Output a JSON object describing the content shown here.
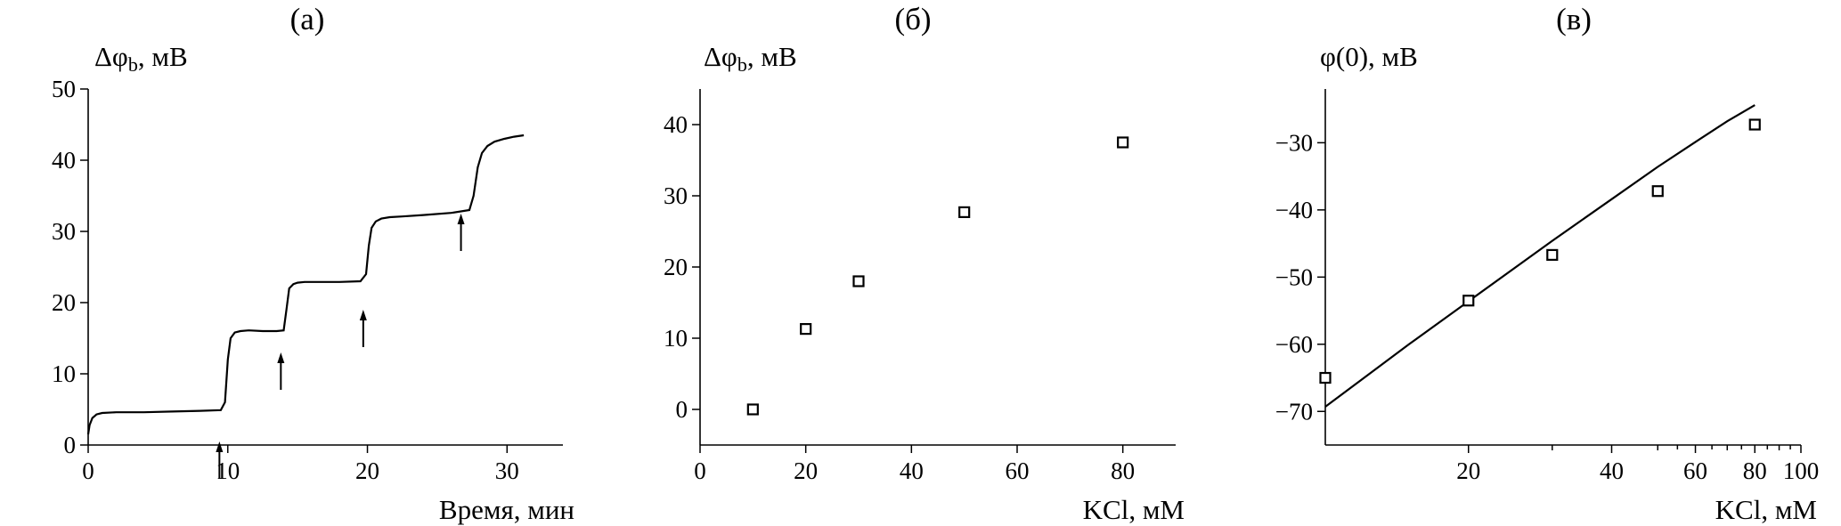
{
  "chart_data": [
    {
      "type": "line",
      "title": "(а)",
      "ylabel": "Δφ",
      "ylabel_sub": "b",
      "ylabel_unit": ", мВ",
      "xlabel": "Время, мин",
      "xlim": [
        0,
        34
      ],
      "ylim": [
        0,
        50
      ],
      "xticks": [
        0,
        10,
        20,
        30
      ],
      "yticks": [
        0,
        10,
        20,
        30,
        40,
        50
      ],
      "grid": false,
      "series": [
        {
          "x": [
            0,
            0.1,
            0.3,
            0.6,
            1,
            2,
            4,
            6,
            8,
            9.5,
            9.8,
            10.0,
            10.2,
            10.5,
            10.9,
            11.5,
            12.5,
            13.5,
            14.0,
            14.2,
            14.4,
            14.7,
            15.0,
            15.5,
            16.5,
            18,
            19.5,
            19.9,
            20.1,
            20.3,
            20.6,
            21.0,
            21.6,
            22.5,
            24,
            26,
            27.3,
            27.6,
            27.9,
            28.2,
            28.6,
            29.1,
            29.8,
            30.5,
            31.2
          ],
          "y": [
            1.5,
            2.8,
            3.8,
            4.3,
            4.5,
            4.6,
            4.6,
            4.7,
            4.8,
            4.9,
            6,
            12,
            15,
            15.8,
            16.0,
            16.1,
            16.0,
            16.0,
            16.1,
            19,
            22,
            22.6,
            22.8,
            22.9,
            22.9,
            22.9,
            23.0,
            24,
            28,
            30.5,
            31.4,
            31.8,
            32.0,
            32.1,
            32.3,
            32.6,
            33.0,
            35,
            39,
            41,
            42,
            42.6,
            43.0,
            43.3,
            43.5
          ]
        }
      ],
      "arrows_x": [
        9.4,
        13.8,
        19.7,
        26.7
      ]
    },
    {
      "type": "scatter",
      "title": "(б)",
      "ylabel": "Δφ",
      "ylabel_sub": "b",
      "ylabel_unit": ", мВ",
      "xlabel": "KCl, мМ",
      "xlim": [
        0,
        90
      ],
      "ylim": [
        -5,
        45
      ],
      "xticks": [
        0,
        20,
        40,
        60,
        80
      ],
      "yticks": [
        0,
        10,
        20,
        30,
        40
      ],
      "grid": false,
      "series": [
        {
          "x": [
            10,
            20,
            30,
            50,
            80
          ],
          "y": [
            0,
            11.3,
            18,
            27.7,
            37.5
          ]
        }
      ]
    },
    {
      "type": "scatter",
      "title": "(в)",
      "ylabel": "φ(0), мВ",
      "xlabel": "KCl, мМ",
      "xscale": "log",
      "xlim": [
        10,
        100
      ],
      "ylim": [
        -75,
        -22
      ],
      "xticks": [
        20,
        40,
        60,
        80,
        100
      ],
      "xtick_labels": [
        "20",
        "40",
        "60",
        "80",
        "100"
      ],
      "yticks": [
        -30,
        -40,
        -50,
        -60,
        -70
      ],
      "ytick_labels": [
        "−30",
        "−40",
        "−50",
        "−60",
        "−70"
      ],
      "grid": false,
      "series": [
        {
          "x": [
            10,
            20,
            30,
            50,
            80
          ],
          "y": [
            -65,
            -53.5,
            -46.7,
            -37.2,
            -27.3
          ]
        },
        {
          "type": "line",
          "x": [
            10,
            15,
            20,
            30,
            40,
            50,
            60,
            70,
            80
          ],
          "y": [
            -69.3,
            -60,
            -53.6,
            -44.6,
            -38.4,
            -33.6,
            -29.9,
            -26.8,
            -24.4
          ]
        }
      ]
    }
  ]
}
